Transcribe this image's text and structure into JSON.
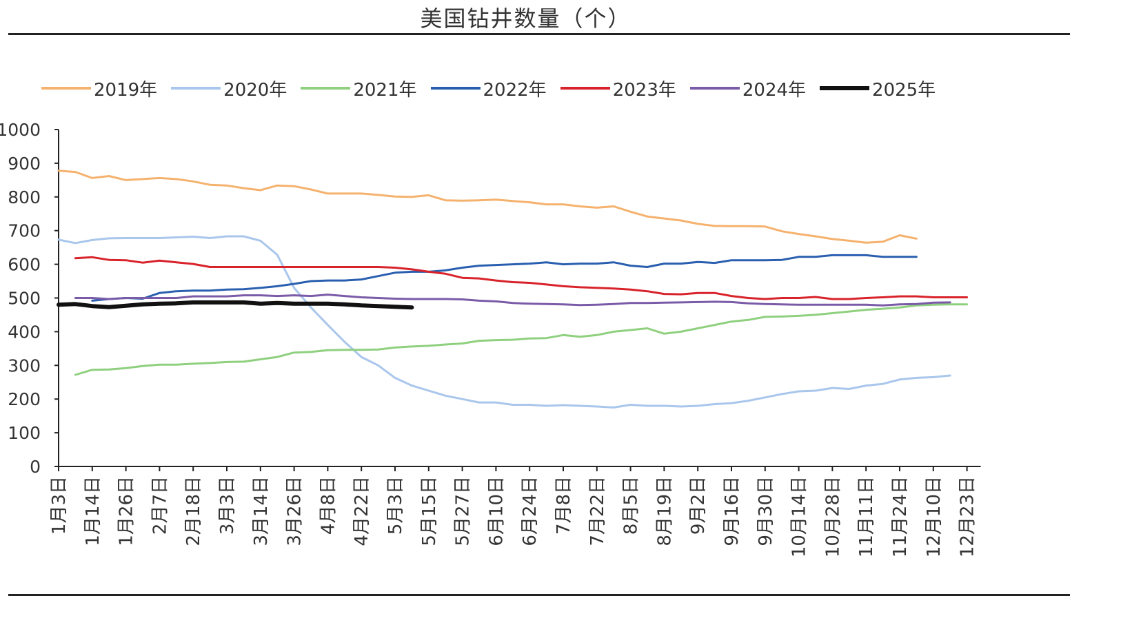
{
  "chart_data": {
    "type": "line",
    "title": "美国钻井数量（个）",
    "xlabel": "",
    "ylabel": "",
    "ylim": [
      0,
      1000
    ],
    "yticks": [
      0,
      100,
      200,
      300,
      400,
      500,
      600,
      700,
      800,
      900,
      1000
    ],
    "x_tick_labels": [
      "1月3日",
      "1月14日",
      "1月26日",
      "2月7日",
      "2月18日",
      "3月3日",
      "3月14日",
      "3月26日",
      "4月8日",
      "4月22日",
      "5月3日",
      "5月15日",
      "5月27日",
      "6月10日",
      "6月24日",
      "7月8日",
      "7月22日",
      "8月5日",
      "8月19日",
      "9月2日",
      "9月16日",
      "9月30日",
      "10月14日",
      "10月28日",
      "11月11日",
      "11月24日",
      "12月10日",
      "12月23日"
    ],
    "grid": false,
    "legend_position": "top",
    "series": [
      {
        "name": "2019年",
        "color": "#F5B26E",
        "width": 3,
        "x_start": 0,
        "x_step": 0.5,
        "values": [
          878,
          874,
          856,
          862,
          850,
          853,
          856,
          853,
          846,
          836,
          834,
          826,
          820,
          834,
          832,
          822,
          810,
          810,
          810,
          806,
          801,
          800,
          805,
          790,
          789,
          790,
          792,
          788,
          784,
          778,
          778,
          772,
          768,
          772,
          756,
          742,
          736,
          730,
          720,
          714,
          713,
          713,
          712,
          698,
          690,
          683,
          675,
          670,
          664,
          667,
          686,
          676
        ]
      },
      {
        "name": "2020年",
        "color": "#A9C6EC",
        "width": 3,
        "x_start": 0,
        "x_step": 0.5,
        "values": [
          673,
          663,
          672,
          677,
          678,
          678,
          678,
          680,
          682,
          678,
          683,
          683,
          670,
          628,
          530,
          472,
          420,
          370,
          325,
          300,
          263,
          240,
          225,
          210,
          200,
          190,
          190,
          183,
          183,
          180,
          182,
          180,
          178,
          175,
          183,
          180,
          180,
          178,
          180,
          185,
          188,
          195,
          205,
          215,
          223,
          225,
          233,
          230,
          240,
          245,
          258,
          263,
          265,
          270
        ]
      },
      {
        "name": "2021年",
        "color": "#8FD07F",
        "width": 3,
        "x_start": 0.5,
        "x_step": 0.5,
        "values": [
          272,
          287,
          288,
          292,
          298,
          302,
          302,
          305,
          307,
          310,
          311,
          318,
          325,
          338,
          340,
          345,
          346,
          346,
          347,
          353,
          356,
          358,
          362,
          365,
          373,
          375,
          376,
          380,
          381,
          390,
          385,
          390,
          400,
          405,
          410,
          394,
          400,
          410,
          420,
          430,
          435,
          444,
          445,
          447,
          450,
          455,
          460,
          465,
          468,
          472,
          478,
          480,
          481,
          481
        ]
      },
      {
        "name": "2022年",
        "color": "#2A5FB0",
        "width": 3,
        "x_start": 1,
        "x_step": 0.5,
        "values": [
          492,
          497,
          500,
          498,
          515,
          520,
          522,
          522,
          525,
          526,
          530,
          535,
          542,
          550,
          552,
          552,
          555,
          565,
          575,
          578,
          578,
          582,
          590,
          596,
          598,
          600,
          602,
          606,
          600,
          602,
          602,
          606,
          596,
          592,
          602,
          602,
          607,
          604,
          612,
          612,
          612,
          613,
          622,
          622,
          627,
          627,
          627,
          622,
          622,
          622
        ]
      },
      {
        "name": "2023年",
        "color": "#D9232B",
        "width": 3,
        "x_start": 0.5,
        "x_step": 0.5,
        "values": [
          618,
          621,
          613,
          612,
          605,
          611,
          606,
          601,
          592,
          592,
          592,
          592,
          592,
          592,
          592,
          592,
          592,
          592,
          592,
          590,
          585,
          578,
          572,
          560,
          558,
          552,
          547,
          545,
          540,
          535,
          532,
          530,
          528,
          525,
          520,
          512,
          511,
          515,
          515,
          506,
          500,
          497,
          500,
          500,
          503,
          497,
          497,
          500,
          502,
          505,
          505,
          502,
          502,
          502
        ]
      },
      {
        "name": "2024年",
        "color": "#7A5BA8",
        "width": 3,
        "x_start": 0.5,
        "x_step": 0.5,
        "values": [
          500,
          500,
          497,
          500,
          500,
          500,
          500,
          505,
          505,
          505,
          508,
          508,
          506,
          508,
          506,
          510,
          506,
          502,
          500,
          498,
          497,
          497,
          497,
          496,
          492,
          490,
          485,
          483,
          482,
          481,
          479,
          480,
          482,
          485,
          485,
          486,
          487,
          488,
          489,
          488,
          484,
          482,
          481,
          480,
          480,
          480,
          480,
          480,
          478,
          481,
          482,
          486,
          487
        ]
      },
      {
        "name": "2025年",
        "color": "#111111",
        "width": 6,
        "x_start": 0,
        "x_step": 0.5,
        "values": [
          480,
          482,
          476,
          473,
          477,
          481,
          483,
          484,
          487,
          487,
          487,
          487,
          483,
          485,
          483,
          483,
          483,
          481,
          478,
          476,
          474,
          472
        ]
      }
    ]
  }
}
